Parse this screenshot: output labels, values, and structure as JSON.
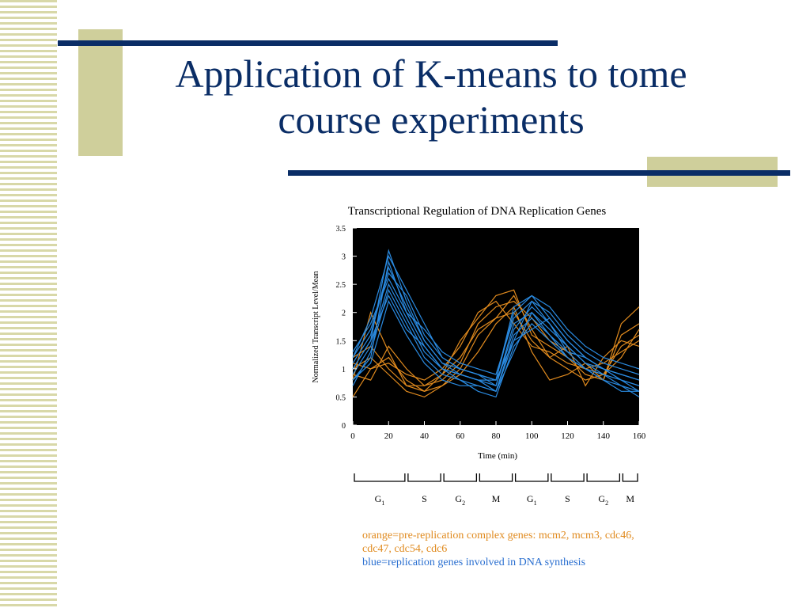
{
  "slide": {
    "title_line1": "Application of K-means to tome",
    "title_line2": "course experiments"
  },
  "legend": {
    "orange": "orange=pre-replication complex genes: mcm2, mcm3, cdc46, cdc47, cdc54, cdc6",
    "blue": "blue=replication genes involved in DNA synthesis"
  },
  "colors": {
    "title": "#0a2d66",
    "orange": "#e08a1e",
    "blue": "#2a8ae0",
    "plot_bg": "#000000",
    "accent": "#cfcf9b"
  },
  "chart_data": {
    "type": "line",
    "title": "Transcriptional Regulation of DNA Replication Genes",
    "xlabel": "Time (min)",
    "ylabel": "Normalized Transcript Level/Mean",
    "xlim": [
      0,
      160
    ],
    "ylim": [
      0,
      3.5
    ],
    "xticks": [
      0,
      20,
      40,
      60,
      80,
      100,
      120,
      140,
      160
    ],
    "yticks": [
      0,
      0.5,
      1,
      1.5,
      2,
      2.5,
      3,
      3.5
    ],
    "ytick_labels": [
      "0",
      "0.5",
      "1",
      "1.5",
      "2",
      "2.5",
      "3",
      "3.5"
    ],
    "x": [
      0,
      10,
      20,
      30,
      40,
      50,
      60,
      70,
      80,
      90,
      100,
      110,
      120,
      130,
      140,
      150,
      160
    ],
    "series": [
      {
        "group": "orange",
        "values": [
          0.8,
          2.0,
          1.3,
          0.7,
          0.6,
          0.9,
          1.5,
          1.9,
          2.3,
          2.4,
          1.6,
          1.4,
          1.2,
          0.9,
          0.8,
          1.8,
          2.1
        ]
      },
      {
        "group": "orange",
        "values": [
          1.2,
          1.4,
          1.0,
          0.7,
          0.7,
          0.8,
          1.1,
          1.8,
          2.1,
          2.2,
          1.9,
          1.5,
          1.3,
          1.0,
          0.9,
          1.4,
          1.6
        ]
      },
      {
        "group": "orange",
        "values": [
          0.5,
          1.0,
          1.2,
          0.8,
          0.6,
          0.7,
          1.0,
          1.6,
          1.9,
          2.0,
          1.5,
          1.2,
          1.0,
          0.8,
          0.9,
          1.2,
          1.7
        ]
      },
      {
        "group": "orange",
        "values": [
          1.1,
          1.0,
          1.1,
          0.9,
          0.8,
          1.0,
          1.4,
          2.0,
          2.2,
          1.8,
          1.4,
          1.3,
          1.1,
          1.0,
          1.1,
          1.3,
          1.5
        ]
      },
      {
        "group": "orange",
        "values": [
          0.9,
          0.8,
          1.4,
          1.0,
          0.7,
          0.9,
          1.2,
          1.7,
          1.9,
          2.3,
          1.7,
          1.2,
          1.4,
          0.7,
          1.2,
          1.5,
          1.4
        ]
      },
      {
        "group": "orange",
        "values": [
          1.0,
          1.2,
          0.9,
          0.6,
          0.5,
          0.7,
          0.9,
          1.3,
          1.8,
          2.1,
          1.3,
          0.8,
          0.9,
          1.1,
          0.8,
          1.6,
          1.8
        ]
      },
      {
        "group": "blue",
        "values": [
          1.0,
          1.5,
          3.1,
          2.2,
          1.5,
          1.1,
          0.9,
          0.8,
          0.6,
          1.5,
          2.2,
          1.8,
          1.3,
          1.2,
          1.0,
          0.8,
          0.7
        ]
      },
      {
        "group": "blue",
        "values": [
          0.8,
          1.2,
          2.9,
          2.0,
          1.4,
          1.0,
          0.9,
          0.8,
          0.7,
          1.8,
          2.0,
          1.7,
          1.4,
          1.1,
          0.9,
          0.7,
          0.6
        ]
      },
      {
        "group": "blue",
        "values": [
          1.2,
          1.7,
          2.7,
          2.3,
          1.6,
          1.2,
          1.0,
          0.9,
          0.8,
          2.0,
          2.3,
          1.9,
          1.5,
          1.2,
          1.0,
          0.9,
          0.8
        ]
      },
      {
        "group": "blue",
        "values": [
          0.9,
          1.4,
          2.5,
          1.9,
          1.3,
          1.0,
          0.8,
          0.7,
          0.6,
          1.6,
          1.9,
          1.6,
          1.2,
          1.0,
          0.9,
          0.8,
          0.7
        ]
      },
      {
        "group": "blue",
        "values": [
          1.1,
          1.6,
          2.8,
          2.1,
          1.5,
          1.1,
          1.0,
          0.9,
          0.7,
          1.7,
          2.1,
          1.8,
          1.4,
          1.1,
          1.0,
          0.8,
          0.6
        ]
      },
      {
        "group": "blue",
        "values": [
          0.7,
          1.3,
          2.4,
          1.8,
          1.2,
          0.9,
          0.8,
          0.6,
          0.5,
          1.4,
          1.8,
          1.5,
          1.2,
          1.0,
          0.8,
          0.7,
          0.5
        ]
      },
      {
        "group": "blue",
        "values": [
          1.3,
          1.8,
          2.6,
          2.0,
          1.7,
          1.3,
          1.1,
          1.0,
          0.9,
          1.9,
          2.2,
          2.0,
          1.6,
          1.3,
          1.1,
          1.0,
          0.9
        ]
      },
      {
        "group": "blue",
        "values": [
          1.0,
          1.5,
          2.3,
          1.7,
          1.4,
          1.0,
          0.9,
          0.8,
          0.8,
          1.5,
          1.7,
          1.9,
          1.5,
          1.2,
          1.0,
          0.9,
          0.8
        ]
      },
      {
        "group": "blue",
        "values": [
          0.8,
          1.1,
          2.2,
          1.6,
          1.1,
          0.8,
          0.7,
          0.7,
          0.6,
          1.3,
          2.0,
          1.6,
          1.3,
          1.0,
          0.8,
          0.6,
          0.6
        ]
      },
      {
        "group": "blue",
        "values": [
          1.2,
          1.9,
          3.0,
          2.4,
          1.8,
          1.2,
          1.0,
          0.9,
          0.8,
          2.1,
          2.3,
          2.1,
          1.7,
          1.4,
          1.2,
          1.1,
          1.0
        ]
      }
    ],
    "phases": [
      {
        "label": "G",
        "sub": "1",
        "start": 0,
        "end": 30
      },
      {
        "label": "S",
        "sub": "",
        "start": 30,
        "end": 50
      },
      {
        "label": "G",
        "sub": "2",
        "start": 50,
        "end": 70
      },
      {
        "label": "M",
        "sub": "",
        "start": 70,
        "end": 90
      },
      {
        "label": "G",
        "sub": "1",
        "start": 90,
        "end": 110
      },
      {
        "label": "S",
        "sub": "",
        "start": 110,
        "end": 130
      },
      {
        "label": "G",
        "sub": "2",
        "start": 130,
        "end": 150
      },
      {
        "label": "M",
        "sub": "",
        "start": 150,
        "end": 160
      }
    ]
  }
}
